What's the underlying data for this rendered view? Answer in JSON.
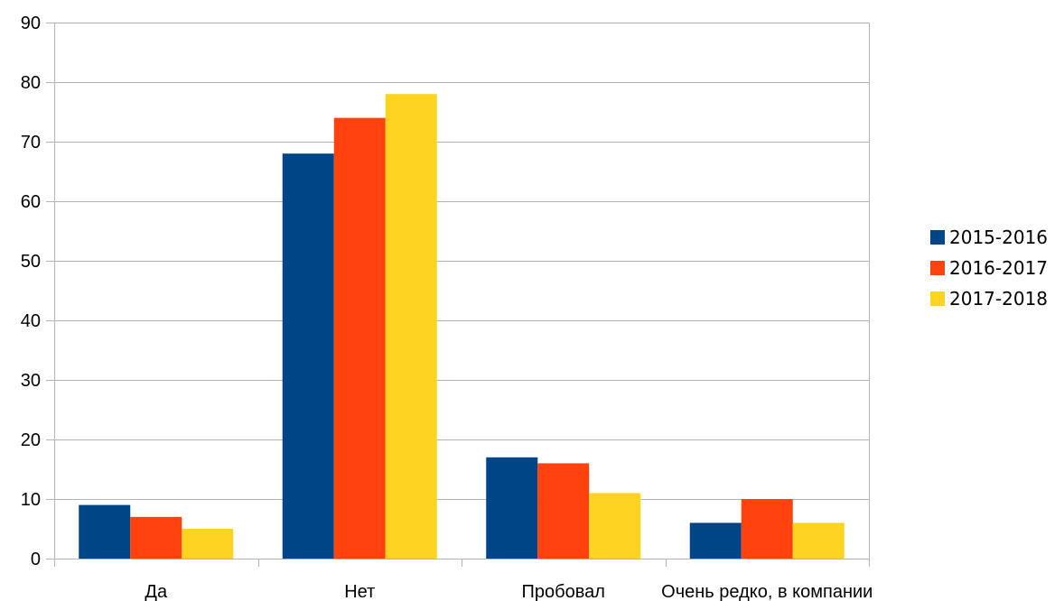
{
  "chart_data": {
    "type": "bar",
    "title": "",
    "xlabel": "",
    "ylabel": "",
    "categories": [
      "Да",
      "Нет",
      "Пробовал",
      "Очень редко, в компании"
    ],
    "series": [
      {
        "name": "2015-2016",
        "values": [
          9,
          68,
          17,
          6
        ],
        "color": "#004586"
      },
      {
        "name": "2016-2017",
        "values": [
          7,
          74,
          16,
          10
        ],
        "color": "#ff420e"
      },
      {
        "name": "2017-2018",
        "values": [
          5,
          78,
          11,
          6
        ],
        "color": "#ffd320"
      }
    ],
    "ylim": [
      0,
      90
    ],
    "yticks": [
      0,
      10,
      20,
      30,
      40,
      50,
      60,
      70,
      80,
      90
    ],
    "grid": true,
    "gridColor": "#b3b3b3",
    "legend": "right"
  }
}
